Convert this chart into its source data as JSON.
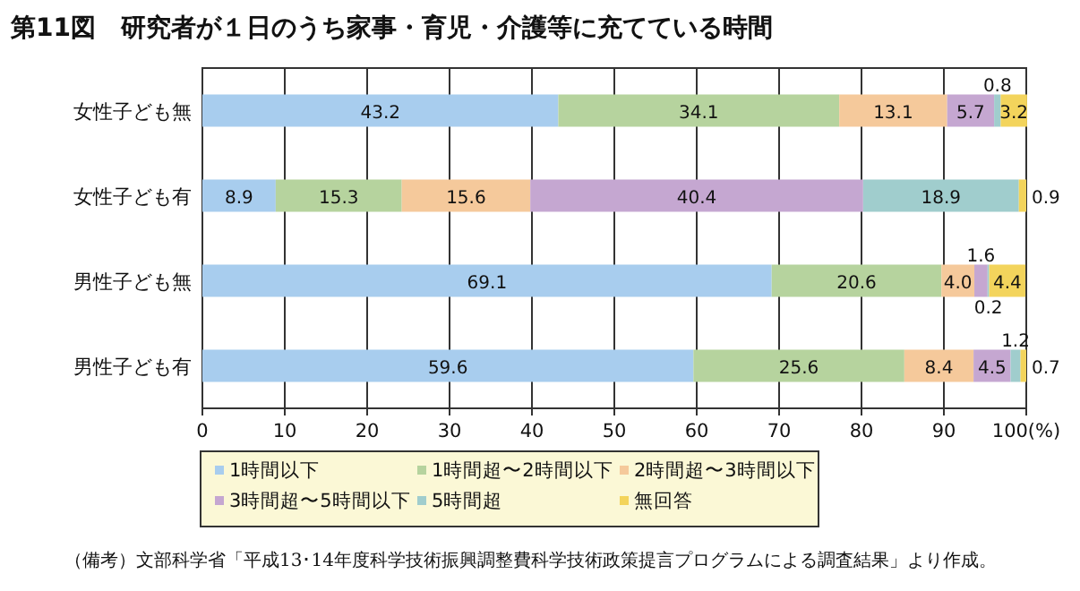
{
  "chart_data": {
    "type": "bar",
    "orientation": "horizontal",
    "stacked": true,
    "title": "第11図　研究者が１日のうち家事・育児・介護等に充てている時間",
    "categories": [
      "女性子ども無",
      "女性子ども有",
      "男性子ども無",
      "男性子ども有"
    ],
    "series": [
      {
        "name": "1時間以下",
        "color": "#a8cdee",
        "values": [
          43.2,
          8.9,
          69.1,
          59.6
        ],
        "value_labels": [
          "43.2",
          "8.9",
          "69.1",
          "59.6"
        ]
      },
      {
        "name": "1時間超〜2時間以下",
        "color": "#b6d39e",
        "values": [
          34.1,
          15.3,
          20.6,
          25.6
        ],
        "value_labels": [
          "34.1",
          "15.3",
          "20.6",
          "25.6"
        ]
      },
      {
        "name": "2時間超〜3時間以下",
        "color": "#f5c99b",
        "values": [
          13.1,
          15.6,
          4.0,
          8.4
        ],
        "value_labels": [
          "13.1",
          "15.6",
          "4.0",
          "8.4"
        ]
      },
      {
        "name": "3時間超〜5時間以下",
        "color": "#c5a7d1",
        "values": [
          5.7,
          40.4,
          1.6,
          4.5
        ],
        "value_labels": [
          "5.7",
          "40.4",
          "1.6",
          "4.5"
        ]
      },
      {
        "name": "5時間超",
        "color": "#a0cdcd",
        "values": [
          0.8,
          18.9,
          0.2,
          1.2
        ],
        "value_labels": [
          "0.8",
          "18.9",
          "0.2",
          "1.2"
        ]
      },
      {
        "name": "無回答",
        "color": "#f3d45c",
        "values": [
          3.2,
          0.9,
          4.4,
          0.7
        ],
        "value_labels": [
          "3.2",
          "0.9",
          "4.4",
          "0.7"
        ]
      }
    ],
    "xlim": [
      0,
      100
    ],
    "xticks": [
      0,
      10,
      20,
      30,
      40,
      50,
      60,
      70,
      80,
      90,
      {
        "value": 100,
        "label": "100(%)"
      }
    ],
    "grid": "x",
    "legend": "bottom",
    "annotations": [
      "（備考）文部科学省「平成13･14年度科学技術振興調整費科学技術政策提言プログラムによる調査結果」より作成。"
    ]
  }
}
